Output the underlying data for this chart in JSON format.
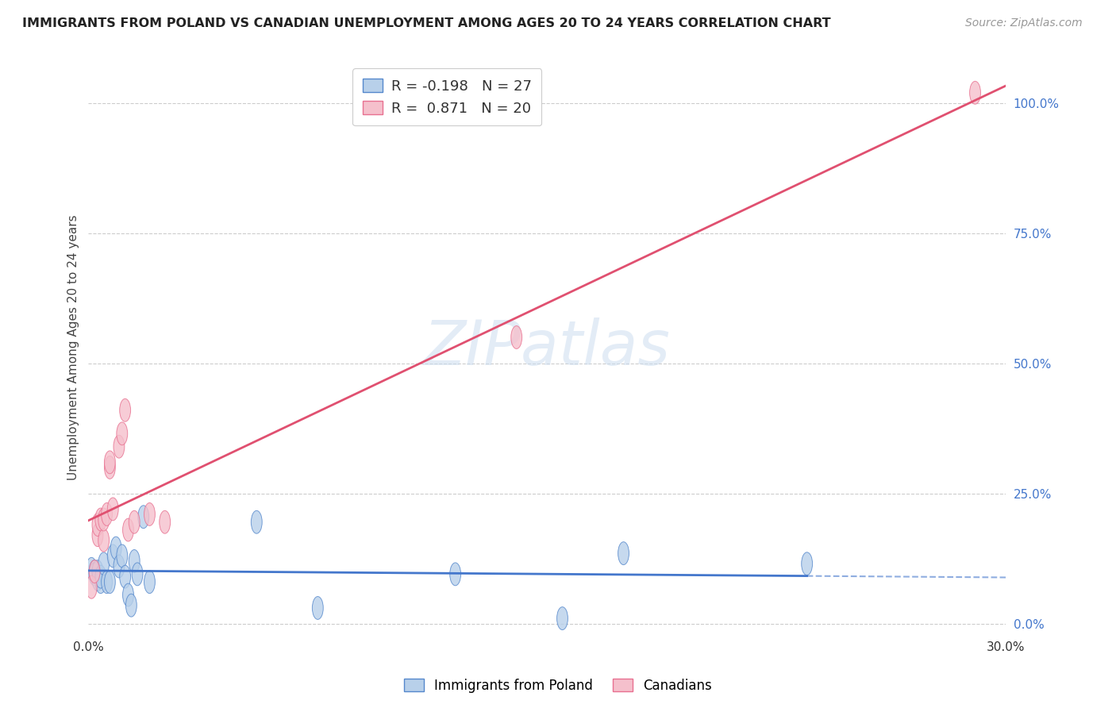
{
  "title": "IMMIGRANTS FROM POLAND VS CANADIAN UNEMPLOYMENT AMONG AGES 20 TO 24 YEARS CORRELATION CHART",
  "source": "Source: ZipAtlas.com",
  "ylabel": "Unemployment Among Ages 20 to 24 years",
  "xlim": [
    0.0,
    0.3
  ],
  "ylim": [
    -0.02,
    1.08
  ],
  "xticks": [
    0.0,
    0.05,
    0.1,
    0.15,
    0.2,
    0.25,
    0.3
  ],
  "yticks_right": [
    0.0,
    0.25,
    0.5,
    0.75,
    1.0
  ],
  "yticklabels_right": [
    "0.0%",
    "25.0%",
    "50.0%",
    "75.0%",
    "100.0%"
  ],
  "blue_R": -0.198,
  "blue_N": 27,
  "pink_R": 0.871,
  "pink_N": 20,
  "blue_color": "#b8d0ea",
  "blue_edge_color": "#5588cc",
  "blue_line_color": "#4477cc",
  "pink_color": "#f5c0cc",
  "pink_edge_color": "#e87090",
  "pink_line_color": "#e05070",
  "blue_points_x": [
    0.001,
    0.002,
    0.002,
    0.003,
    0.003,
    0.004,
    0.004,
    0.005,
    0.006,
    0.007,
    0.008,
    0.009,
    0.01,
    0.011,
    0.012,
    0.013,
    0.014,
    0.015,
    0.016,
    0.018,
    0.02,
    0.055,
    0.075,
    0.12,
    0.155,
    0.175,
    0.235
  ],
  "blue_points_y": [
    0.105,
    0.1,
    0.095,
    0.085,
    0.1,
    0.08,
    0.09,
    0.115,
    0.08,
    0.08,
    0.13,
    0.145,
    0.11,
    0.13,
    0.09,
    0.055,
    0.035,
    0.12,
    0.095,
    0.205,
    0.08,
    0.195,
    0.03,
    0.095,
    0.01,
    0.135,
    0.115
  ],
  "pink_points_x": [
    0.001,
    0.002,
    0.003,
    0.003,
    0.004,
    0.005,
    0.005,
    0.006,
    0.007,
    0.007,
    0.008,
    0.01,
    0.011,
    0.012,
    0.013,
    0.015,
    0.02,
    0.025,
    0.14,
    0.29
  ],
  "pink_points_y": [
    0.07,
    0.1,
    0.17,
    0.19,
    0.2,
    0.16,
    0.2,
    0.21,
    0.3,
    0.31,
    0.22,
    0.34,
    0.365,
    0.41,
    0.18,
    0.195,
    0.21,
    0.195,
    0.55,
    1.02
  ],
  "watermark": "ZIPatlas",
  "legend_blue_label": "Immigrants from Poland",
  "legend_pink_label": "Canadians",
  "background_color": "#ffffff",
  "grid_color": "#cccccc"
}
